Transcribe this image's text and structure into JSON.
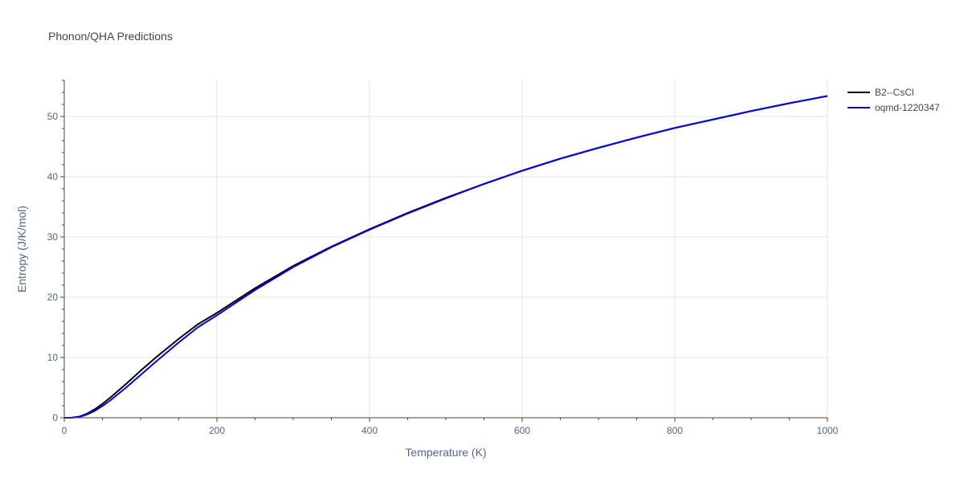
{
  "chart_data": {
    "type": "line",
    "title": "Phonon/QHA Predictions",
    "xlabel": "Temperature (K)",
    "ylabel": "Entropy (J/K/mol)",
    "xlim": [
      0,
      1000
    ],
    "ylim": [
      0,
      56
    ],
    "x_ticks": [
      0,
      200,
      400,
      600,
      800,
      1000
    ],
    "y_ticks": [
      0,
      10,
      20,
      30,
      40,
      50
    ],
    "grid": true,
    "legend_position": "top-right",
    "series": [
      {
        "name": "B2--CsCl",
        "color": "#000000",
        "x": [
          0,
          10,
          20,
          30,
          40,
          50,
          60,
          80,
          100,
          120,
          150,
          175,
          200,
          250,
          300,
          350,
          400,
          450,
          500,
          550,
          600,
          650,
          700,
          750,
          800,
          850,
          900,
          950,
          1000
        ],
        "y": [
          0,
          0.02,
          0.2,
          0.7,
          1.4,
          2.3,
          3.3,
          5.5,
          7.8,
          10.0,
          13.1,
          15.5,
          17.4,
          21.5,
          25.2,
          28.4,
          31.3,
          34.0,
          36.5,
          38.8,
          41.0,
          43.0,
          44.8,
          46.5,
          48.1,
          49.5,
          50.9,
          52.2,
          53.4
        ]
      },
      {
        "name": "oqmd-1220347",
        "color": "#0000ee",
        "x": [
          0,
          10,
          20,
          30,
          40,
          50,
          60,
          80,
          100,
          120,
          150,
          175,
          200,
          250,
          300,
          350,
          400,
          450,
          500,
          550,
          600,
          650,
          700,
          750,
          800,
          850,
          900,
          950,
          1000
        ],
        "y": [
          0,
          0.01,
          0.15,
          0.55,
          1.15,
          1.95,
          2.85,
          4.9,
          7.1,
          9.3,
          12.5,
          15.0,
          17.0,
          21.2,
          25.0,
          28.3,
          31.2,
          33.9,
          36.4,
          38.8,
          41.0,
          43.0,
          44.8,
          46.5,
          48.1,
          49.5,
          50.9,
          52.2,
          53.4
        ]
      }
    ]
  }
}
